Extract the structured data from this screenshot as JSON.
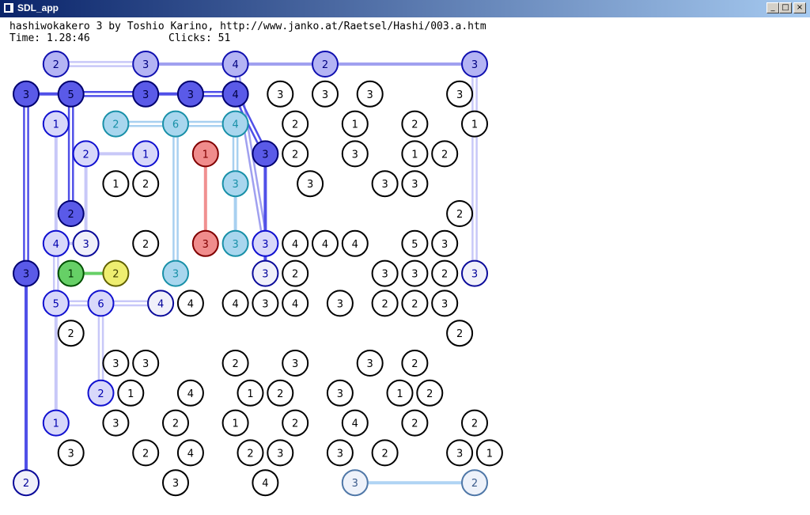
{
  "window": {
    "title": "SDL_app",
    "controls": {
      "minimize": "_",
      "maximize": "□",
      "close": "×"
    }
  },
  "header": {
    "text": "hashiwokakero 3 by Toshio Karino, http://www.janko.at/Raetsel/Hashi/003.a.htm",
    "time_label": "Time: 1.28:46",
    "clicks_label": "Clicks: 51"
  },
  "colors": {
    "node_default": {
      "fill": "#ffffff",
      "stroke": "#000000",
      "text": "#000000"
    },
    "blue_pale": {
      "fill": "#f0f0fa",
      "stroke": "#0a0a9a",
      "text": "#00009a"
    },
    "blue_light": {
      "fill": "#d8d8fa",
      "stroke": "#1010d0",
      "text": "#0000b0"
    },
    "blue_mid": {
      "fill": "#b4b4f4",
      "stroke": "#1010b0",
      "text": "#000080"
    },
    "blue_dark": {
      "fill": "#5a5ae8",
      "stroke": "#000070",
      "text": "#000040"
    },
    "teal": {
      "fill": "#a8d6ee",
      "stroke": "#1890a8",
      "text": "#1890a8"
    },
    "red": {
      "fill": "#f08c8c",
      "stroke": "#800000",
      "text": "#800000"
    },
    "green": {
      "fill": "#66d066",
      "stroke": "#005000",
      "text": "#003000"
    },
    "yellow": {
      "fill": "#eeee70",
      "stroke": "#606000",
      "text": "#404000"
    },
    "steel": {
      "fill": "#eef2fa",
      "stroke": "#5078a8",
      "text": "#3a5a8a"
    },
    "bridge_pale": "#c8c8f8",
    "bridge_mid": "#a0a0f0",
    "bridge_dark": "#5050e8",
    "bridge_teal": "#a8d0f0",
    "bridge_red": "#f09090",
    "bridge_green": "#66d066",
    "bridge_steel": "#b0d4f4"
  },
  "islands": [
    {
      "c": 1,
      "r": 0,
      "v": 2,
      "s": "blue_mid"
    },
    {
      "c": 4,
      "r": 0,
      "v": 3,
      "s": "blue_mid"
    },
    {
      "c": 7,
      "r": 0,
      "v": 4,
      "s": "blue_mid"
    },
    {
      "c": 10,
      "r": 0,
      "v": 2,
      "s": "blue_mid"
    },
    {
      "c": 15,
      "r": 0,
      "v": 3,
      "s": "blue_mid"
    },
    {
      "c": 0,
      "r": 1,
      "v": 3,
      "s": "blue_dark"
    },
    {
      "c": 1.5,
      "r": 1,
      "v": 5,
      "s": "blue_dark"
    },
    {
      "c": 4,
      "r": 1,
      "v": 3,
      "s": "blue_dark"
    },
    {
      "c": 5.5,
      "r": 1,
      "v": 3,
      "s": "blue_dark"
    },
    {
      "c": 7,
      "r": 1,
      "v": 4,
      "s": "blue_dark"
    },
    {
      "c": 8.5,
      "r": 1,
      "v": 3
    },
    {
      "c": 10,
      "r": 1,
      "v": 3
    },
    {
      "c": 11.5,
      "r": 1,
      "v": 3
    },
    {
      "c": 14.5,
      "r": 1,
      "v": 3
    },
    {
      "c": 1,
      "r": 2,
      "v": 1,
      "s": "blue_light"
    },
    {
      "c": 3,
      "r": 2,
      "v": 2,
      "s": "teal"
    },
    {
      "c": 5,
      "r": 2,
      "v": 6,
      "s": "teal"
    },
    {
      "c": 7,
      "r": 2,
      "v": 4,
      "s": "teal"
    },
    {
      "c": 9,
      "r": 2,
      "v": 2
    },
    {
      "c": 11,
      "r": 2,
      "v": 1
    },
    {
      "c": 13,
      "r": 2,
      "v": 2
    },
    {
      "c": 15,
      "r": 2,
      "v": 1
    },
    {
      "c": 2,
      "r": 3,
      "v": 2,
      "s": "blue_light"
    },
    {
      "c": 4,
      "r": 3,
      "v": 1,
      "s": "blue_light"
    },
    {
      "c": 6,
      "r": 3,
      "v": 1,
      "s": "red"
    },
    {
      "c": 8,
      "r": 3,
      "v": 3,
      "s": "blue_dark"
    },
    {
      "c": 9,
      "r": 3,
      "v": 2
    },
    {
      "c": 11,
      "r": 3,
      "v": 3
    },
    {
      "c": 13,
      "r": 3,
      "v": 1
    },
    {
      "c": 14,
      "r": 3,
      "v": 2
    },
    {
      "c": 3,
      "r": 4,
      "v": 1
    },
    {
      "c": 4,
      "r": 4,
      "v": 2
    },
    {
      "c": 7,
      "r": 4,
      "v": 3,
      "s": "teal"
    },
    {
      "c": 9.5,
      "r": 4,
      "v": 3
    },
    {
      "c": 12,
      "r": 4,
      "v": 3
    },
    {
      "c": 13,
      "r": 4,
      "v": 3
    },
    {
      "c": 1.5,
      "r": 5,
      "v": 2,
      "s": "blue_dark"
    },
    {
      "c": 14.5,
      "r": 5,
      "v": 2
    },
    {
      "c": 1,
      "r": 6,
      "v": 4,
      "s": "blue_light"
    },
    {
      "c": 2,
      "r": 6,
      "v": 3,
      "s": "blue_pale"
    },
    {
      "c": 4,
      "r": 6,
      "v": 2
    },
    {
      "c": 6,
      "r": 6,
      "v": 3,
      "s": "red"
    },
    {
      "c": 7,
      "r": 6,
      "v": 3,
      "s": "teal"
    },
    {
      "c": 8,
      "r": 6,
      "v": 3,
      "s": "blue_light"
    },
    {
      "c": 9,
      "r": 6,
      "v": 4
    },
    {
      "c": 10,
      "r": 6,
      "v": 4
    },
    {
      "c": 11,
      "r": 6,
      "v": 4
    },
    {
      "c": 13,
      "r": 6,
      "v": 5
    },
    {
      "c": 14,
      "r": 6,
      "v": 3
    },
    {
      "c": 0,
      "r": 7,
      "v": 3,
      "s": "blue_dark"
    },
    {
      "c": 1.5,
      "r": 7,
      "v": 1,
      "s": "green"
    },
    {
      "c": 3,
      "r": 7,
      "v": 2,
      "s": "yellow"
    },
    {
      "c": 5,
      "r": 7,
      "v": 3,
      "s": "teal"
    },
    {
      "c": 8,
      "r": 7,
      "v": 3,
      "s": "blue_pale"
    },
    {
      "c": 9,
      "r": 7,
      "v": 2
    },
    {
      "c": 12,
      "r": 7,
      "v": 3
    },
    {
      "c": 13,
      "r": 7,
      "v": 3
    },
    {
      "c": 14,
      "r": 7,
      "v": 2
    },
    {
      "c": 15,
      "r": 7,
      "v": 3,
      "s": "blue_pale"
    },
    {
      "c": 1,
      "r": 8,
      "v": 5,
      "s": "blue_light"
    },
    {
      "c": 2.5,
      "r": 8,
      "v": 6,
      "s": "blue_light"
    },
    {
      "c": 4.5,
      "r": 8,
      "v": 4,
      "s": "blue_pale"
    },
    {
      "c": 5.5,
      "r": 8,
      "v": 4
    },
    {
      "c": 7,
      "r": 8,
      "v": 4
    },
    {
      "c": 8,
      "r": 8,
      "v": 3
    },
    {
      "c": 9,
      "r": 8,
      "v": 4
    },
    {
      "c": 10.5,
      "r": 8,
      "v": 3
    },
    {
      "c": 12,
      "r": 8,
      "v": 2
    },
    {
      "c": 13,
      "r": 8,
      "v": 2
    },
    {
      "c": 14,
      "r": 8,
      "v": 3
    },
    {
      "c": 1.5,
      "r": 9,
      "v": 2
    },
    {
      "c": 14.5,
      "r": 9,
      "v": 2
    },
    {
      "c": 3,
      "r": 10,
      "v": 3
    },
    {
      "c": 4,
      "r": 10,
      "v": 3
    },
    {
      "c": 7,
      "r": 10,
      "v": 2
    },
    {
      "c": 9,
      "r": 10,
      "v": 3
    },
    {
      "c": 11.5,
      "r": 10,
      "v": 3
    },
    {
      "c": 13,
      "r": 10,
      "v": 2
    },
    {
      "c": 2.5,
      "r": 11,
      "v": 2,
      "s": "blue_light"
    },
    {
      "c": 3.5,
      "r": 11,
      "v": 1
    },
    {
      "c": 5.5,
      "r": 11,
      "v": 4
    },
    {
      "c": 7.5,
      "r": 11,
      "v": 1
    },
    {
      "c": 8.5,
      "r": 11,
      "v": 2
    },
    {
      "c": 10.5,
      "r": 11,
      "v": 3
    },
    {
      "c": 12.5,
      "r": 11,
      "v": 1
    },
    {
      "c": 13.5,
      "r": 11,
      "v": 2
    },
    {
      "c": 1,
      "r": 12,
      "v": 1,
      "s": "blue_light"
    },
    {
      "c": 3,
      "r": 12,
      "v": 3
    },
    {
      "c": 5,
      "r": 12,
      "v": 2
    },
    {
      "c": 7,
      "r": 12,
      "v": 1
    },
    {
      "c": 9,
      "r": 12,
      "v": 2
    },
    {
      "c": 11,
      "r": 12,
      "v": 4
    },
    {
      "c": 13,
      "r": 12,
      "v": 2
    },
    {
      "c": 15,
      "r": 12,
      "v": 2
    },
    {
      "c": 1.5,
      "r": 13,
      "v": 3
    },
    {
      "c": 4,
      "r": 13,
      "v": 2
    },
    {
      "c": 5.5,
      "r": 13,
      "v": 4
    },
    {
      "c": 7.5,
      "r": 13,
      "v": 2
    },
    {
      "c": 8.5,
      "r": 13,
      "v": 3
    },
    {
      "c": 10.5,
      "r": 13,
      "v": 3
    },
    {
      "c": 12,
      "r": 13,
      "v": 2
    },
    {
      "c": 14.5,
      "r": 13,
      "v": 3
    },
    {
      "c": 15.5,
      "r": 13,
      "v": 1
    },
    {
      "c": 0,
      "r": 14,
      "v": 2,
      "s": "blue_pale"
    },
    {
      "c": 5,
      "r": 14,
      "v": 3
    },
    {
      "c": 8,
      "r": 14,
      "v": 4
    },
    {
      "c": 11,
      "r": 14,
      "v": 3,
      "s": "steel"
    },
    {
      "c": 15,
      "r": 14,
      "v": 2,
      "s": "steel"
    }
  ],
  "bridges": [
    {
      "a": [
        1,
        0
      ],
      "b": [
        4,
        0
      ],
      "n": 2,
      "s": "bridge_pale"
    },
    {
      "a": [
        4,
        0
      ],
      "b": [
        7,
        0
      ],
      "n": 1,
      "s": "bridge_mid"
    },
    {
      "a": [
        7,
        0
      ],
      "b": [
        10,
        0
      ],
      "n": 1,
      "s": "bridge_mid"
    },
    {
      "a": [
        10,
        0
      ],
      "b": [
        15,
        0
      ],
      "n": 1,
      "s": "bridge_mid"
    },
    {
      "a": [
        7,
        0
      ],
      "b": [
        8,
        6
      ],
      "n": 2,
      "s": "bridge_mid"
    },
    {
      "a": [
        15,
        0
      ],
      "b": [
        15,
        7
      ],
      "n": 2,
      "s": "bridge_pale"
    },
    {
      "a": [
        0,
        1
      ],
      "b": [
        1.5,
        1
      ],
      "n": 1,
      "s": "bridge_dark"
    },
    {
      "a": [
        1.5,
        1
      ],
      "b": [
        4,
        1
      ],
      "n": 2,
      "s": "bridge_dark"
    },
    {
      "a": [
        4,
        1
      ],
      "b": [
        5.5,
        1
      ],
      "n": 1,
      "s": "bridge_dark"
    },
    {
      "a": [
        5.5,
        1
      ],
      "b": [
        7,
        1
      ],
      "n": 2,
      "s": "bridge_dark"
    },
    {
      "a": [
        0,
        1
      ],
      "b": [
        0,
        7
      ],
      "n": 2,
      "s": "bridge_dark"
    },
    {
      "a": [
        1.5,
        1
      ],
      "b": [
        1.5,
        5
      ],
      "n": 2,
      "s": "bridge_dark"
    },
    {
      "a": [
        7,
        1
      ],
      "b": [
        8,
        3
      ],
      "n": 2,
      "s": "bridge_dark"
    },
    {
      "a": [
        8,
        3
      ],
      "b": [
        8,
        7
      ],
      "n": 1,
      "s": "bridge_dark"
    },
    {
      "a": [
        0,
        7
      ],
      "b": [
        0,
        14
      ],
      "n": 1,
      "s": "bridge_dark"
    },
    {
      "a": [
        3,
        2
      ],
      "b": [
        5,
        2
      ],
      "n": 2,
      "s": "bridge_teal"
    },
    {
      "a": [
        5,
        2
      ],
      "b": [
        7,
        2
      ],
      "n": 2,
      "s": "bridge_teal"
    },
    {
      "a": [
        5,
        2
      ],
      "b": [
        5,
        7
      ],
      "n": 2,
      "s": "bridge_teal"
    },
    {
      "a": [
        7,
        2
      ],
      "b": [
        7,
        4
      ],
      "n": 2,
      "s": "bridge_teal"
    },
    {
      "a": [
        7,
        4
      ],
      "b": [
        7,
        6
      ],
      "n": 1,
      "s": "bridge_teal"
    },
    {
      "a": [
        6,
        3
      ],
      "b": [
        6,
        6
      ],
      "n": 1,
      "s": "bridge_red"
    },
    {
      "a": [
        2,
        3
      ],
      "b": [
        4,
        3
      ],
      "n": 1,
      "s": "bridge_pale"
    },
    {
      "a": [
        2,
        3
      ],
      "b": [
        2,
        6
      ],
      "n": 1,
      "s": "bridge_pale"
    },
    {
      "a": [
        1,
        2
      ],
      "b": [
        1,
        6
      ],
      "n": 1,
      "s": "bridge_pale"
    },
    {
      "a": [
        1,
        6
      ],
      "b": [
        2,
        6
      ],
      "n": 1,
      "s": "bridge_pale"
    },
    {
      "a": [
        1,
        6
      ],
      "b": [
        1,
        8
      ],
      "n": 2,
      "s": "bridge_pale"
    },
    {
      "a": [
        1,
        8
      ],
      "b": [
        2.5,
        8
      ],
      "n": 2,
      "s": "bridge_pale"
    },
    {
      "a": [
        2.5,
        8
      ],
      "b": [
        4.5,
        8
      ],
      "n": 2,
      "s": "bridge_pale"
    },
    {
      "a": [
        2.5,
        8
      ],
      "b": [
        2.5,
        11
      ],
      "n": 2,
      "s": "bridge_pale"
    },
    {
      "a": [
        1,
        8
      ],
      "b": [
        1,
        12
      ],
      "n": 1,
      "s": "bridge_pale"
    },
    {
      "a": [
        1.5,
        7
      ],
      "b": [
        3,
        7
      ],
      "n": 1,
      "s": "bridge_green"
    },
    {
      "a": [
        11,
        14
      ],
      "b": [
        15,
        14
      ],
      "n": 1,
      "s": "bridge_steel"
    }
  ]
}
